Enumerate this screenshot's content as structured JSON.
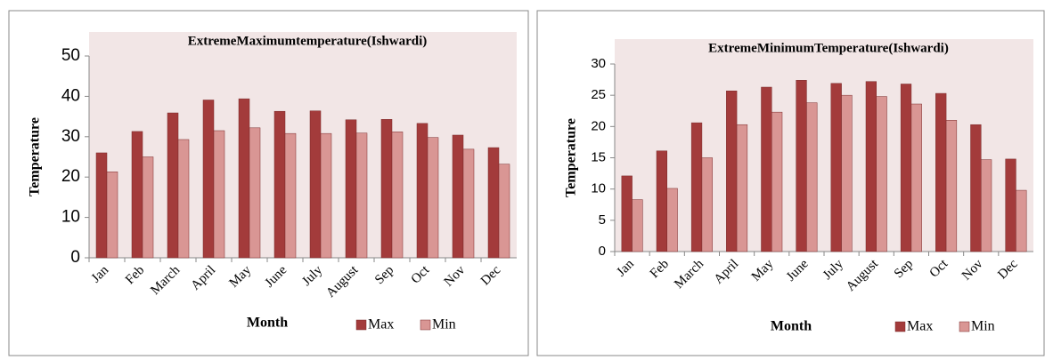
{
  "chart_data": [
    {
      "type": "bar",
      "title": "ExtremeMaximumtemperature(Ishwardi)",
      "x_label": "Month",
      "y_label": "Temperature",
      "categories": [
        "Jan",
        "Feb",
        "March",
        "April",
        "May",
        "June",
        "July",
        "August",
        "Sep",
        "Oct",
        "Nov",
        "Dec"
      ],
      "series": [
        {
          "name": "Max",
          "color": "#a33b3b",
          "values": [
            26,
            31.3,
            35.9,
            39.1,
            39.4,
            36.3,
            36.4,
            34.2,
            34.3,
            33.3,
            30.4,
            27.3
          ]
        },
        {
          "name": "Min",
          "color": "#d99694",
          "values": [
            21.3,
            25,
            29.3,
            31.5,
            32.2,
            30.8,
            30.8,
            30.9,
            31.2,
            29.8,
            26.9,
            23.2
          ]
        }
      ],
      "ylim": [
        0,
        50
      ],
      "yticks": [
        0,
        10,
        20,
        30,
        40,
        50
      ],
      "grid": false,
      "legend": "bottom-right"
    },
    {
      "type": "bar",
      "title": "ExtremeMinimumTemperature(Ishwardi)",
      "x_label": "Month",
      "y_label": "Temperature",
      "categories": [
        "Jan",
        "Feb",
        "March",
        "April",
        "May",
        "June",
        "July",
        "August",
        "Sep",
        "Oct",
        "Nov",
        "Dec"
      ],
      "series": [
        {
          "name": "Max",
          "color": "#a33b3b",
          "values": [
            12.1,
            16.1,
            20.6,
            25.7,
            26.3,
            27.4,
            26.9,
            27.2,
            26.8,
            25.3,
            20.3,
            14.8
          ]
        },
        {
          "name": "Min",
          "color": "#d99694",
          "values": [
            8.3,
            10.1,
            15,
            20.3,
            22.3,
            23.8,
            25,
            24.8,
            23.6,
            21,
            14.7,
            9.8
          ]
        }
      ],
      "ylim": [
        0,
        30
      ],
      "yticks": [
        0,
        5,
        10,
        15,
        20,
        25,
        30
      ],
      "grid": false,
      "legend": "bottom-right"
    }
  ]
}
